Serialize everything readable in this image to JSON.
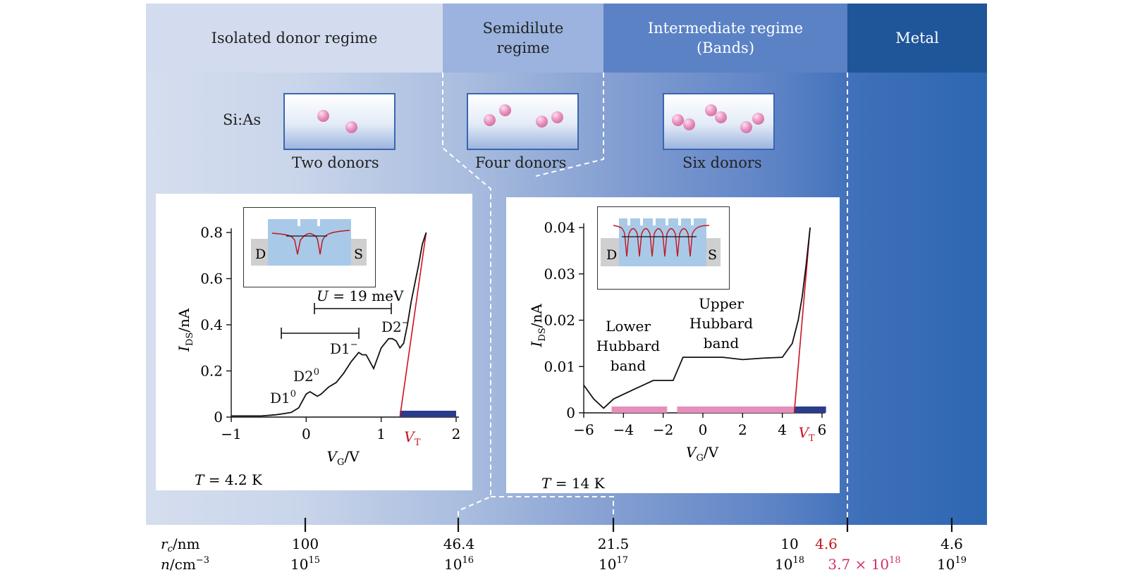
{
  "regimes": {
    "isolated": "Isolated donor regime",
    "semidilute_1": "Semidilute",
    "semidilute_2": "regime",
    "intermediate_1": "Intermediate regime",
    "intermediate_2": "(Bands)",
    "metal": "Metal"
  },
  "sample_label": "Si:As",
  "samples": [
    "Two donors",
    "Four donors",
    "Six donors"
  ],
  "colors": {
    "curve": "#111111",
    "threshold": "#cc1122",
    "band_lower": "#e58fbd",
    "band_conduct": "#2a3c8c",
    "highlight": "#cc3366"
  },
  "bottom_axis": {
    "rc_label": "r",
    "rc_sub": "c",
    "rc_unit": "/nm",
    "n_label": "n",
    "n_unit": "/cm",
    "n_exp": "−3",
    "rc_values": [
      "100",
      "46.4",
      "21.5",
      "10",
      "4.6",
      "4.6"
    ],
    "n_values": [
      {
        "base": "10",
        "exp": "15"
      },
      {
        "base": "10",
        "exp": "16"
      },
      {
        "base": "10",
        "exp": "17"
      },
      {
        "base": "10",
        "exp": "18"
      },
      {
        "base": "3.7 × 10",
        "exp": "18"
      },
      {
        "base": "10",
        "exp": "19"
      }
    ]
  },
  "chart_data": [
    {
      "type": "line",
      "xlabel_main": "V",
      "xlabel_sub": "G",
      "xlabel_unit": "/V",
      "ylabel_main": "I",
      "ylabel_sub": "DS",
      "ylabel_unit": "/nA",
      "xlim": [
        -1,
        2
      ],
      "ylim": [
        0,
        0.8
      ],
      "x_ticks": [
        "−1",
        "0",
        "1",
        "2"
      ],
      "y_ticks": [
        "0",
        "0.2",
        "0.4",
        "0.6",
        "0.8"
      ],
      "temperature": "T = 4.2 K",
      "threshold_label": "V",
      "threshold_sub": "T",
      "annotations": [
        "D1",
        "0",
        "D2",
        "0",
        "D1",
        "−",
        "D2",
        "−",
        "U = 19 meV"
      ],
      "inset_labels": [
        "D",
        "S"
      ],
      "series": [
        {
          "x": [
            -1.0,
            -0.6,
            -0.4,
            -0.3,
            -0.2,
            -0.1,
            -0.05,
            0.0,
            0.05,
            0.1,
            0.15,
            0.2,
            0.3,
            0.4,
            0.5,
            0.6,
            0.7,
            0.75,
            0.8,
            0.9,
            1.0,
            1.1,
            1.15,
            1.2,
            1.25,
            1.3,
            1.35,
            1.4,
            1.45,
            1.5,
            1.55,
            1.6
          ],
          "y": [
            0.005,
            0.005,
            0.01,
            0.015,
            0.02,
            0.04,
            0.07,
            0.1,
            0.11,
            0.1,
            0.09,
            0.1,
            0.13,
            0.15,
            0.19,
            0.24,
            0.28,
            0.27,
            0.27,
            0.21,
            0.3,
            0.34,
            0.34,
            0.33,
            0.3,
            0.32,
            0.4,
            0.5,
            0.58,
            0.66,
            0.75,
            0.8
          ]
        }
      ],
      "threshold_x": 1.25,
      "conduction_band": [
        1.25,
        2.0
      ]
    },
    {
      "type": "line",
      "xlabel_main": "V",
      "xlabel_sub": "G",
      "xlabel_unit": "/V",
      "ylabel_main": "I",
      "ylabel_sub": "DS",
      "ylabel_unit": "/nA",
      "xlim": [
        -6,
        6
      ],
      "ylim": [
        0,
        0.04
      ],
      "x_ticks": [
        "−6",
        "−4",
        "−2",
        "0",
        "2",
        "4",
        "6"
      ],
      "y_ticks": [
        "0",
        "0.01",
        "0.02",
        "0.03",
        "0.04"
      ],
      "temperature": "T = 14 K",
      "threshold_label": "V",
      "threshold_sub": "T",
      "annotations": [
        "Lower",
        "Hubbard",
        "band",
        "Upper",
        "Hubbard",
        "band"
      ],
      "inset_labels": [
        "D",
        "S"
      ],
      "series": [
        {
          "x": [
            -6.0,
            -5.5,
            -5.0,
            -4.5,
            -4.0,
            -3.5,
            -3.0,
            -2.5,
            -2.0,
            -1.5,
            -1.2,
            -1.0,
            -0.5,
            0.0,
            1.0,
            2.0,
            3.0,
            4.0,
            4.5,
            4.8,
            5.0,
            5.2,
            5.4
          ],
          "y": [
            0.006,
            0.003,
            0.001,
            0.003,
            0.004,
            0.005,
            0.006,
            0.007,
            0.007,
            0.007,
            0.01,
            0.012,
            0.012,
            0.012,
            0.012,
            0.0115,
            0.0118,
            0.012,
            0.015,
            0.02,
            0.025,
            0.032,
            0.04
          ]
        }
      ],
      "threshold_x": 4.6,
      "hubbard_bands": [
        [
          -4.6,
          -1.8
        ],
        [
          -1.3,
          4.6
        ]
      ],
      "conduction_band": [
        4.6,
        6.2
      ]
    }
  ]
}
